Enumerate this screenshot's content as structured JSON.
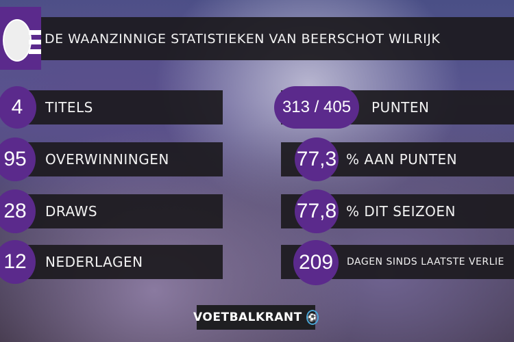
{
  "title": "DE WAANZINNIGE STATISTIEKEN VAN BEERSCHOT WILRIJK",
  "accent_color": "#5b2a8c",
  "left_stats": [
    {
      "value": "4",
      "label": "TITELS"
    },
    {
      "value": "95",
      "label": "OVERWINNINGEN"
    },
    {
      "value": "28",
      "label": "DRAWS"
    },
    {
      "value": "12",
      "label": "NEDERLAGEN"
    }
  ],
  "right_stats": [
    {
      "value": "313 / 405",
      "label": "PUNTEN"
    },
    {
      "value": "77,3",
      "label": "% AAN PUNTEN"
    },
    {
      "value": "77,8",
      "label": "% DIT SEIZOEN"
    },
    {
      "value": "209",
      "label": "DAGEN SINDS LAATSTE VERLIE"
    }
  ],
  "brand": {
    "name": "VOETBALKRANT",
    "icon": "football-icon"
  },
  "logo": "beerschot-wilrijk-crest"
}
